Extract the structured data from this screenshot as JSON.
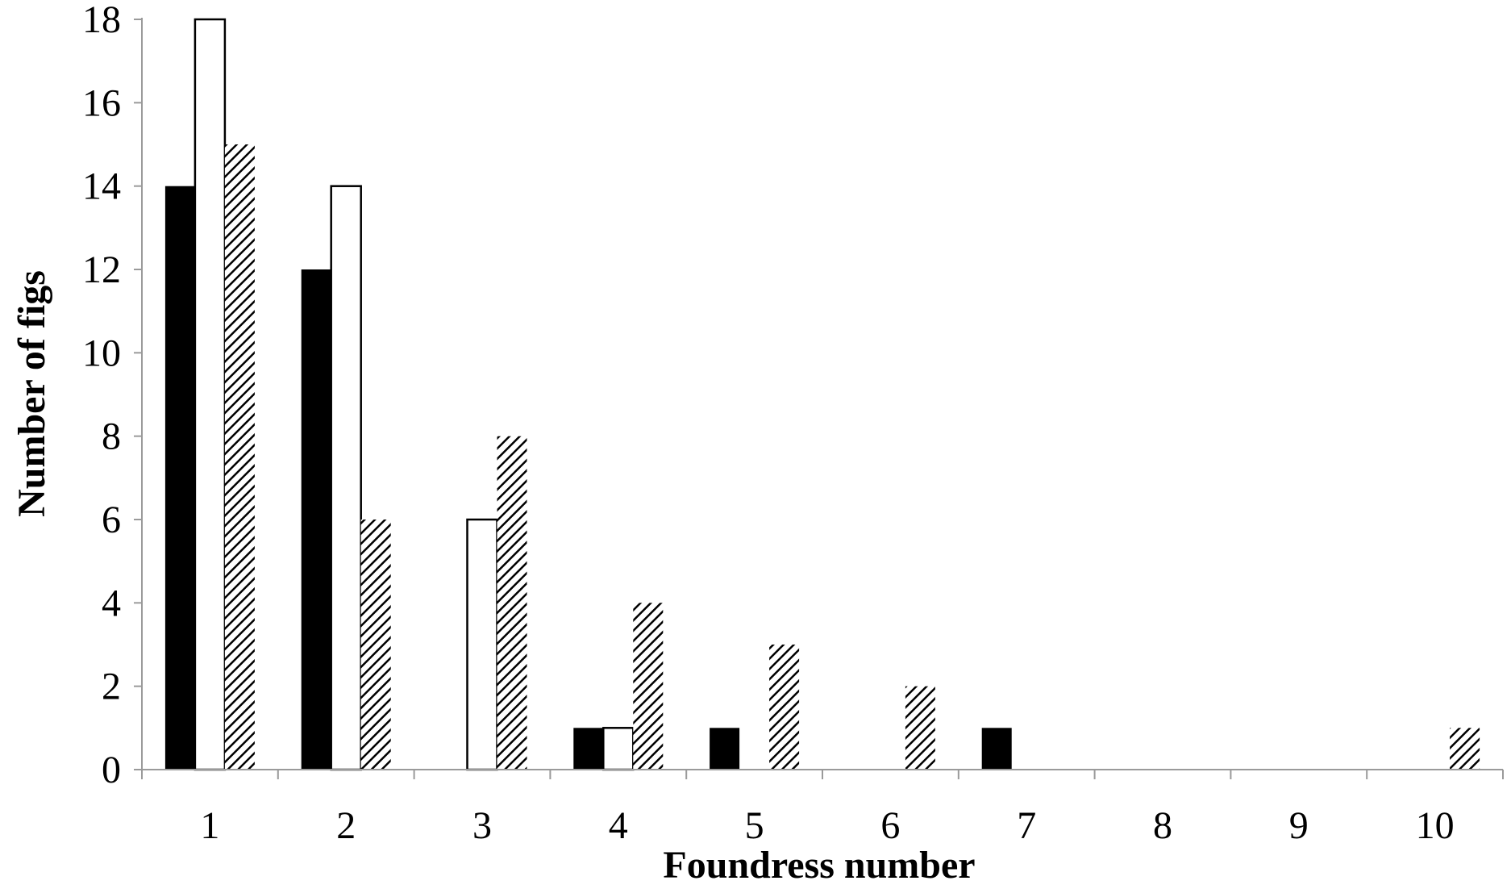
{
  "chart_data": {
    "type": "bar",
    "title": "",
    "xlabel": "Foundress number",
    "ylabel": "Number of figs",
    "categories": [
      "1",
      "2",
      "3",
      "4",
      "5",
      "6",
      "7",
      "8",
      "9",
      "10"
    ],
    "yticks": [
      "0",
      "2",
      "4",
      "6",
      "8",
      "10",
      "12",
      "14",
      "16",
      "18"
    ],
    "ylim": [
      0,
      18
    ],
    "grid": false,
    "legend": "none",
    "series": [
      {
        "fill": "solid-black",
        "color": "#000000",
        "values": [
          14,
          12,
          0,
          1,
          1,
          0,
          1,
          0,
          0,
          0
        ]
      },
      {
        "fill": "white",
        "color": "#ffffff",
        "values": [
          18,
          14,
          6,
          1,
          0,
          0,
          0,
          0,
          0,
          0
        ]
      },
      {
        "fill": "diagonal-hatch",
        "color": "#000000",
        "values": [
          15,
          6,
          8,
          4,
          3,
          2,
          0,
          0,
          0,
          1
        ]
      }
    ]
  }
}
